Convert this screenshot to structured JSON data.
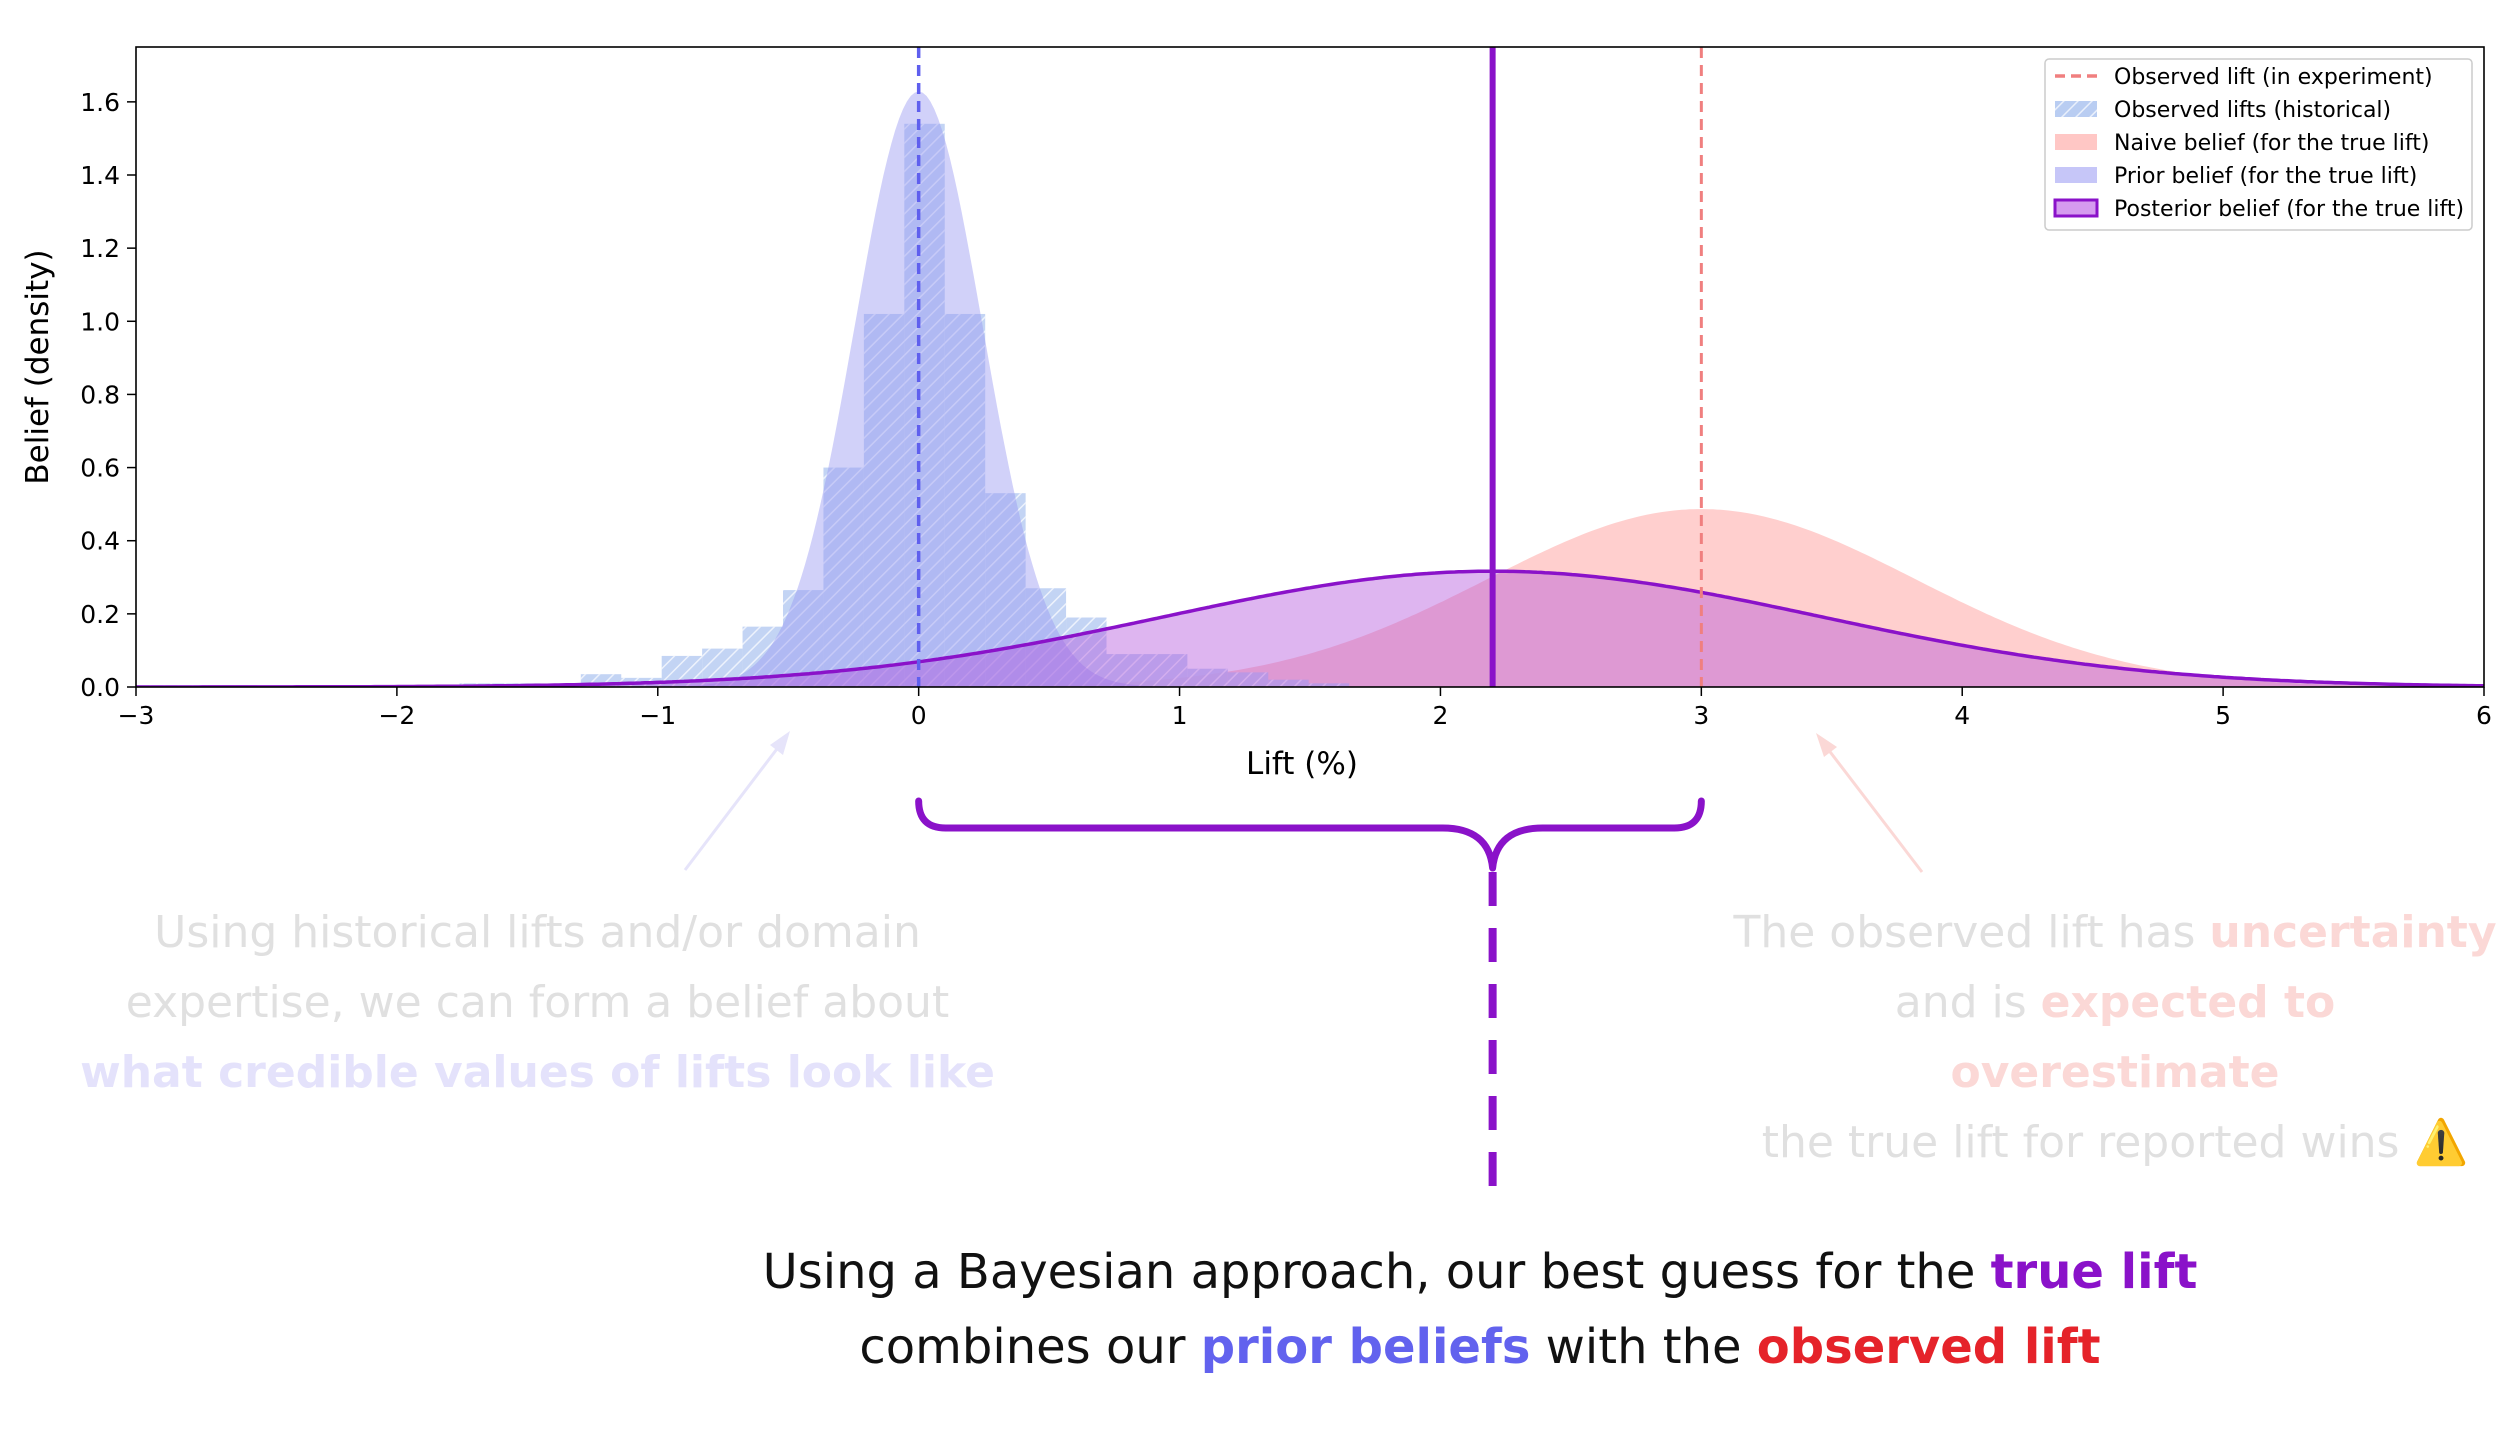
{
  "chart_data": {
    "type": "area",
    "xlabel": "Lift (%)",
    "ylabel": "Belief (density)",
    "xlim": [
      -3,
      6
    ],
    "ylim": [
      0,
      1.75
    ],
    "xticks": [
      -3,
      -2,
      -1,
      0,
      1,
      2,
      3,
      4,
      5,
      6
    ],
    "xtick_labels": [
      "−3",
      "−2",
      "−1",
      "0",
      "1",
      "2",
      "3",
      "4",
      "5",
      "6"
    ],
    "yticks": [
      0.0,
      0.2,
      0.4,
      0.6,
      0.8,
      1.0,
      1.2,
      1.4,
      1.6
    ],
    "ytick_labels": [
      "0.0",
      "0.2",
      "0.4",
      "0.6",
      "0.8",
      "1.0",
      "1.2",
      "1.4",
      "1.6"
    ],
    "grid": false,
    "legend_position": "top-right",
    "legend": [
      {
        "label": "Observed lift (in experiment)",
        "style": "dashed-line",
        "color": "#f07f7f"
      },
      {
        "label": "Observed lifts (historical)",
        "style": "hatched",
        "color": "#b9cdf2"
      },
      {
        "label": "Naive belief (for the true lift)",
        "style": "fill",
        "color": "#ffc7c5"
      },
      {
        "label": "Prior belief (for the true lift)",
        "style": "fill",
        "color": "#c6c6f8"
      },
      {
        "label": "Posterior belief (for the true lift)",
        "style": "outlined-fill",
        "color": "#d59bef",
        "edge": "#8a12c9"
      }
    ],
    "series": [
      {
        "name": "Observed lift (in experiment)",
        "kind": "vline",
        "x": 3,
        "color": "#f07f7f"
      },
      {
        "name": "Observed lifts (historical)",
        "kind": "histogram",
        "bin_width": 0.155,
        "bins": [
          {
            "x0": -3.0,
            "height": 0.005
          },
          {
            "x0": -2.845,
            "height": 0.005
          },
          {
            "x0": -2.69,
            "height": 0.005
          },
          {
            "x0": -2.07,
            "height": 0.005
          },
          {
            "x0": -1.76,
            "height": 0.01
          },
          {
            "x0": -1.605,
            "height": 0.01
          },
          {
            "x0": -1.295,
            "height": 0.035
          },
          {
            "x0": -1.14,
            "height": 0.025
          },
          {
            "x0": -0.985,
            "height": 0.085
          },
          {
            "x0": -0.83,
            "height": 0.105
          },
          {
            "x0": -0.675,
            "height": 0.165
          },
          {
            "x0": -0.52,
            "height": 0.265
          },
          {
            "x0": -0.365,
            "height": 0.6
          },
          {
            "x0": -0.21,
            "height": 1.02
          },
          {
            "x0": -0.055,
            "height": 1.54
          },
          {
            "x0": 0.1,
            "height": 1.02
          },
          {
            "x0": 0.255,
            "height": 0.53
          },
          {
            "x0": 0.41,
            "height": 0.27
          },
          {
            "x0": 0.565,
            "height": 0.19
          },
          {
            "x0": 0.72,
            "height": 0.09
          },
          {
            "x0": 0.875,
            "height": 0.09
          },
          {
            "x0": 1.03,
            "height": 0.05
          },
          {
            "x0": 1.185,
            "height": 0.04
          },
          {
            "x0": 1.34,
            "height": 0.02
          },
          {
            "x0": 1.495,
            "height": 0.01
          }
        ]
      },
      {
        "name": "Naive belief (for the true lift)",
        "kind": "normal",
        "mean": 3.0,
        "sd": 0.82,
        "color": "#ffc7c5"
      },
      {
        "name": "Prior belief (for the true lift)",
        "kind": "normal",
        "mean": 0.0,
        "sd": 0.245,
        "color": "#c6c6f8"
      },
      {
        "name": "Posterior belief (for the true lift)",
        "kind": "normal",
        "mean": 2.2,
        "sd": 1.26,
        "color": "#d59bef",
        "edge": "#8a12c9"
      },
      {
        "name": "Prior mean",
        "kind": "vline",
        "x": 0,
        "color": "#5f5fee"
      },
      {
        "name": "Posterior mean",
        "kind": "vline",
        "x": 2.2,
        "color": "#8a12c9"
      }
    ]
  },
  "annotations": {
    "left": {
      "line1": "Using historical lifts and/or domain",
      "line2": "expertise, we can form a belief about",
      "highlight": "what credible values of lifts look like"
    },
    "right": {
      "line1_a": "The observed lift has ",
      "line1_hl": "uncertainty",
      "line2_a": "and is ",
      "line2_hl": "expected to overestimate",
      "line3": "the true lift for reported wins",
      "warn_icon": "⚠️"
    }
  },
  "conclusion": {
    "l1_a": "Using a Bayesian approach, our best guess for the ",
    "l1_hl": "true lift",
    "l2_a": "combines our ",
    "l2_hl1": "prior beliefs",
    "l2_b": " with the ",
    "l2_hl2": "observed lift"
  }
}
